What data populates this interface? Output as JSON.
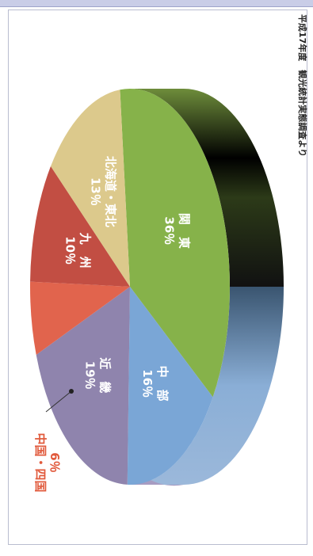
{
  "chart_data": {
    "type": "pie",
    "title": "",
    "source_note": "平成17年度　観光統計実態調査より",
    "slices": [
      {
        "label": "関　東",
        "value": 36,
        "value_label": "36％",
        "color": "#86b24a"
      },
      {
        "label": "中　部",
        "value": 16,
        "value_label": "16％",
        "color": "#7aa6d6"
      },
      {
        "label": "近　畿",
        "value": 19,
        "value_label": "19％",
        "color": "#8f84ad"
      },
      {
        "label": "中国・四国",
        "value": 6,
        "value_label": "6％",
        "color": "#e1644d"
      },
      {
        "label": "九　州",
        "value": 10,
        "value_label": "10％",
        "color": "#c24e43"
      },
      {
        "label": "北海道・東北",
        "value": 13,
        "value_label": "13％",
        "color": "#dcc98c"
      }
    ],
    "callout_color": "#e15a3c"
  }
}
